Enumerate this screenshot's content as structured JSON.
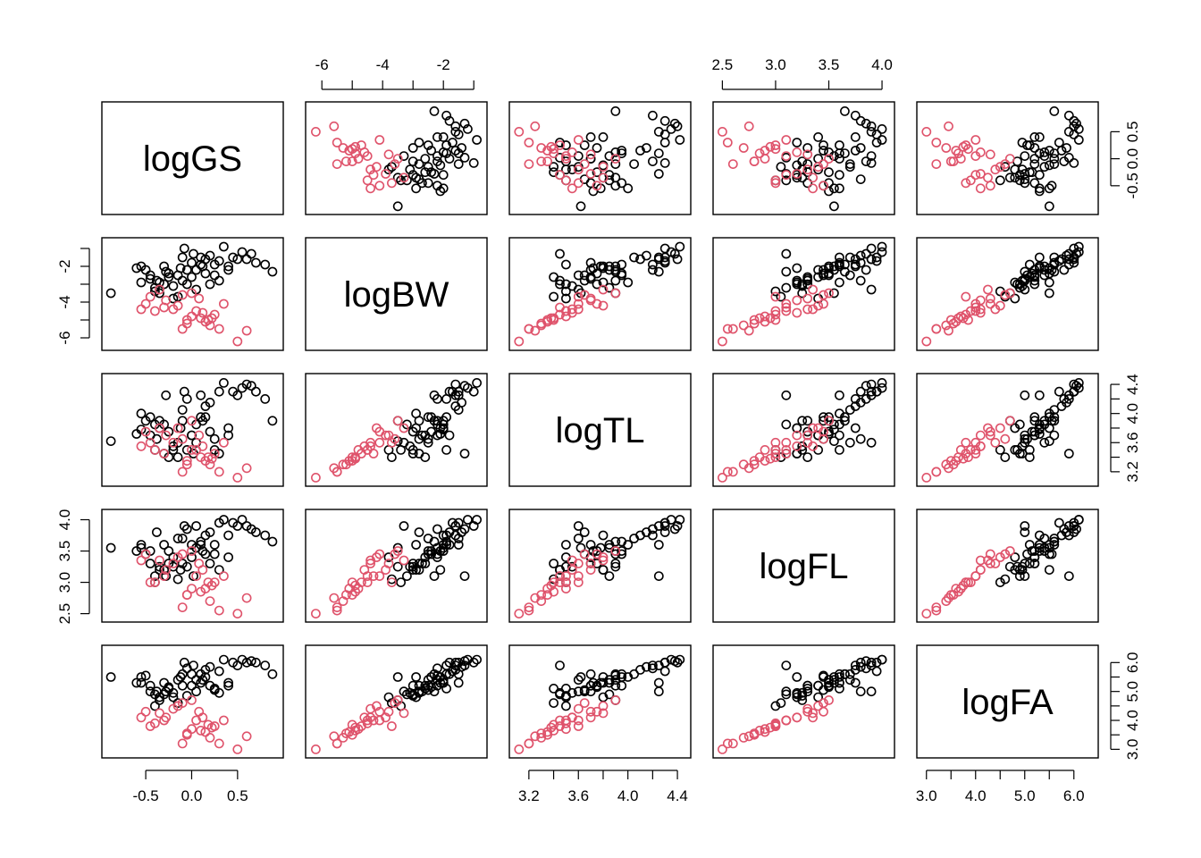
{
  "chart_data": {
    "type": "scatter",
    "subtype": "scatterplot-matrix",
    "title": "",
    "variables": [
      "logGS",
      "logBW",
      "logTL",
      "logFL",
      "logFA"
    ],
    "ranges": {
      "logGS": [
        -0.9,
        0.92
      ],
      "logBW": [
        -6.3,
        -0.8
      ],
      "logTL": [
        3.1,
        4.45
      ],
      "logFL": [
        2.48,
        4.05
      ],
      "logFA": [
        2.95,
        6.35
      ]
    },
    "ticks": {
      "logGS": {
        "values": [
          -0.5,
          0.0,
          0.5
        ],
        "labels": [
          "-0.5",
          "0.0",
          "0.5"
        ]
      },
      "logBW": {
        "values": [
          -6,
          -5,
          -4,
          -3,
          -2,
          -1
        ],
        "labels": [
          "-6",
          "",
          "-4",
          "",
          "-2",
          ""
        ]
      },
      "logTL": {
        "values": [
          3.2,
          3.4,
          3.6,
          3.8,
          4.0,
          4.2,
          4.4
        ],
        "labels": [
          "3.2",
          "",
          "3.6",
          "",
          "4.0",
          "",
          "4.4"
        ]
      },
      "logFL": {
        "values": [
          2.5,
          3.0,
          3.5,
          4.0
        ],
        "labels": [
          "2.5",
          "3.0",
          "3.5",
          "4.0"
        ]
      },
      "logFA": {
        "values": [
          3.0,
          3.5,
          4.0,
          4.5,
          5.0,
          5.5,
          6.0
        ],
        "labels": [
          "3.0",
          "",
          "4.0",
          "",
          "5.0",
          "",
          "6.0"
        ]
      }
    },
    "axis_placement": {
      "top": [
        "logBW",
        "logFL"
      ],
      "bottom": [
        "logGS",
        "logTL",
        "logFA"
      ],
      "left": [
        "logBW",
        "logFL"
      ],
      "right": [
        "logGS",
        "logTL",
        "logFA"
      ]
    },
    "series": [
      {
        "color": "#000000",
        "columns": [
          "logGS",
          "logBW",
          "logTL",
          "logFL",
          "logFA"
        ],
        "points": [
          [
            -0.88,
            -3.5,
            3.62,
            3.55,
            5.5
          ],
          [
            -0.6,
            -2.1,
            3.72,
            3.5,
            5.3
          ],
          [
            -0.55,
            -2.9,
            4.0,
            3.6,
            5.5
          ],
          [
            -0.5,
            -2.2,
            3.9,
            3.45,
            5.55
          ],
          [
            -0.45,
            -2.5,
            3.95,
            3.5,
            5.2
          ],
          [
            -0.4,
            -3.2,
            3.85,
            3.1,
            4.9
          ],
          [
            -0.38,
            -2.8,
            3.65,
            3.8,
            5.0
          ],
          [
            -0.35,
            -3.5,
            3.9,
            3.25,
            4.7
          ],
          [
            -0.3,
            -3.0,
            3.45,
            3.2,
            4.9
          ],
          [
            -0.28,
            -2.3,
            4.25,
            3.1,
            5.0
          ],
          [
            -0.25,
            -2.6,
            3.4,
            3.3,
            5.1
          ],
          [
            -0.2,
            -3.8,
            3.5,
            3.4,
            4.8
          ],
          [
            -0.15,
            -2.5,
            3.6,
            3.7,
            5.4
          ],
          [
            -0.12,
            -2.1,
            3.8,
            3.2,
            5.5
          ],
          [
            -0.1,
            -2.8,
            3.9,
            3.3,
            5.2
          ],
          [
            -0.08,
            -1.0,
            4.3,
            3.9,
            6.0
          ],
          [
            -0.05,
            -2.2,
            4.2,
            3.85,
            5.8
          ],
          [
            0.0,
            -1.8,
            3.7,
            3.6,
            5.6
          ],
          [
            0.02,
            -1.3,
            3.45,
            3.1,
            5.9
          ],
          [
            0.05,
            -3.3,
            3.6,
            3.9,
            5.0
          ],
          [
            0.1,
            -1.5,
            4.25,
            3.6,
            5.3
          ],
          [
            0.12,
            -2.0,
            3.9,
            3.5,
            5.4
          ],
          [
            0.15,
            -2.4,
            3.95,
            3.45,
            5.5
          ],
          [
            0.2,
            -3.0,
            3.75,
            3.3,
            5.2
          ],
          [
            0.25,
            -1.9,
            3.5,
            3.6,
            5.1
          ],
          [
            0.3,
            -1.7,
            4.3,
            3.95,
            5.7
          ],
          [
            0.35,
            -0.9,
            4.42,
            4.0,
            6.1
          ],
          [
            0.4,
            -2.0,
            3.8,
            3.75,
            5.3
          ],
          [
            0.45,
            -1.5,
            4.3,
            3.95,
            6.0
          ],
          [
            0.5,
            -1.6,
            4.25,
            3.9,
            5.9
          ],
          [
            0.55,
            -1.2,
            4.35,
            4.0,
            6.1
          ],
          [
            0.6,
            -1.6,
            4.4,
            3.9,
            6.0
          ],
          [
            0.65,
            -1.3,
            4.38,
            3.85,
            6.05
          ],
          [
            0.7,
            -1.8,
            4.3,
            3.8,
            6.0
          ],
          [
            0.8,
            -1.9,
            4.2,
            3.75,
            5.9
          ],
          [
            0.88,
            -2.3,
            3.9,
            3.65,
            5.6
          ],
          [
            -0.55,
            -2.0,
            3.78,
            3.55,
            5.3
          ],
          [
            -0.45,
            -2.7,
            3.7,
            3.3,
            5.0
          ],
          [
            -0.35,
            -2.9,
            3.8,
            3.2,
            4.8
          ],
          [
            -0.2,
            -3.1,
            3.55,
            3.25,
            4.95
          ],
          [
            -0.15,
            -3.7,
            3.4,
            3.05,
            4.6
          ],
          [
            -0.05,
            -3.0,
            3.5,
            3.25,
            4.85
          ],
          [
            0.0,
            -2.6,
            3.7,
            3.4,
            5.2
          ],
          [
            0.05,
            -2.2,
            3.85,
            3.55,
            5.4
          ],
          [
            0.1,
            -1.9,
            3.95,
            3.65,
            5.6
          ],
          [
            0.15,
            -1.6,
            4.1,
            3.75,
            5.75
          ],
          [
            0.2,
            -1.4,
            4.15,
            3.8,
            5.85
          ],
          [
            0.25,
            -2.5,
            3.65,
            3.45,
            5.05
          ],
          [
            -0.4,
            -3.4,
            3.5,
            3.0,
            4.5
          ],
          [
            -0.3,
            -2.0,
            3.85,
            3.6,
            5.3
          ],
          [
            -0.25,
            -2.4,
            3.75,
            3.5,
            5.15
          ],
          [
            0.3,
            -2.8,
            3.45,
            3.2,
            4.95
          ],
          [
            0.4,
            -2.2,
            3.7,
            3.4,
            5.2
          ],
          [
            -0.1,
            -1.5,
            4.05,
            3.7,
            5.6
          ]
        ]
      },
      {
        "color": "#df536b",
        "columns": [
          "logGS",
          "logBW",
          "logTL",
          "logFL",
          "logFA"
        ],
        "points": [
          [
            -0.55,
            -4.4,
            3.55,
            3.35,
            4.1
          ],
          [
            -0.5,
            -4.1,
            3.75,
            3.45,
            4.3
          ],
          [
            -0.45,
            -3.7,
            3.6,
            3.0,
            3.8
          ],
          [
            -0.4,
            -4.5,
            3.5,
            3.0,
            3.9
          ],
          [
            -0.3,
            -4.3,
            3.45,
            3.1,
            4.0
          ],
          [
            -0.28,
            -3.9,
            3.7,
            3.2,
            4.1
          ],
          [
            -0.1,
            -5.5,
            3.2,
            2.6,
            3.2
          ],
          [
            -0.05,
            -5.0,
            3.35,
            2.8,
            3.5
          ],
          [
            0.0,
            -4.8,
            3.5,
            2.9,
            3.7
          ],
          [
            0.1,
            -4.9,
            3.4,
            2.85,
            3.65
          ],
          [
            0.15,
            -5.1,
            3.35,
            2.9,
            3.6
          ],
          [
            0.2,
            -5.3,
            3.3,
            2.7,
            3.4
          ],
          [
            0.25,
            -4.7,
            3.45,
            3.0,
            3.8
          ],
          [
            0.3,
            -5.5,
            3.2,
            2.55,
            3.2
          ],
          [
            0.5,
            -6.2,
            3.12,
            2.5,
            3.0
          ],
          [
            0.6,
            -5.6,
            3.25,
            2.75,
            3.45
          ],
          [
            -0.15,
            -4.2,
            3.8,
            3.4,
            4.5
          ],
          [
            -0.1,
            -3.6,
            3.65,
            3.45,
            4.6
          ],
          [
            0.0,
            -3.5,
            3.9,
            3.5,
            4.7
          ],
          [
            0.05,
            -4.5,
            3.5,
            3.1,
            4.0
          ],
          [
            0.12,
            -4.6,
            3.55,
            3.2,
            4.1
          ],
          [
            -0.2,
            -4.4,
            3.6,
            3.3,
            4.4
          ],
          [
            0.18,
            -5.0,
            3.4,
            3.0,
            3.85
          ],
          [
            0.22,
            -4.9,
            3.38,
            2.95,
            3.75
          ],
          [
            -0.05,
            -5.2,
            3.3,
            2.8,
            3.55
          ],
          [
            0.08,
            -3.8,
            3.7,
            3.3,
            4.3
          ],
          [
            -0.35,
            -3.3,
            3.8,
            3.35,
            4.25
          ],
          [
            0.35,
            -4.1,
            3.6,
            3.1,
            4.0
          ]
        ]
      }
    ]
  }
}
